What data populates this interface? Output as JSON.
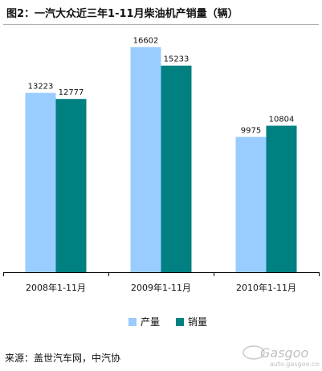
{
  "title": "图2：一汽大众近三年1-11月柴油机产销量（辆）",
  "source": "来源：盖世汽车网，中汽协",
  "colors": {
    "production": "#99ccff",
    "sales": "#008080",
    "axis": "#000000"
  },
  "watermark": {
    "brand": "Gasgoo",
    "url": "auto.gasgoo.com"
  },
  "chart_data": {
    "type": "bar",
    "title": "",
    "xlabel": "",
    "ylabel": "",
    "categories": [
      "2008年1-11月",
      "2009年1-11月",
      "2010年1-11月"
    ],
    "series": [
      {
        "name": "产量",
        "values": [
          13223,
          16602,
          9975
        ]
      },
      {
        "name": "销量",
        "values": [
          12777,
          15233,
          10804
        ]
      }
    ],
    "ylim": [
      0,
      18000
    ],
    "grid": false,
    "legend_position": "bottom"
  }
}
